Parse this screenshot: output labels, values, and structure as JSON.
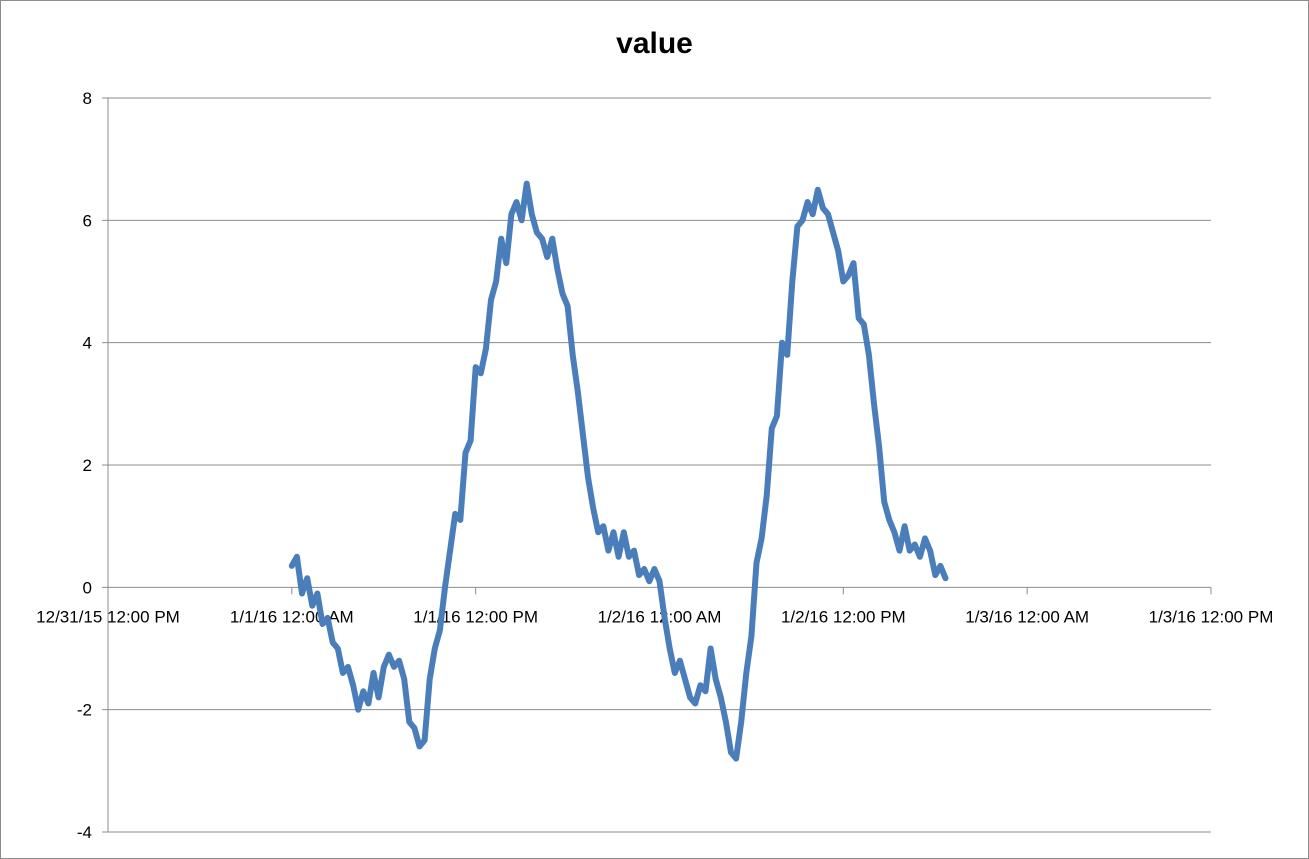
{
  "chart_data": {
    "type": "line",
    "title": "value",
    "xlabel": "",
    "ylabel": "",
    "x_tick_labels": [
      "12/31/15 12:00 PM",
      "1/1/16 12:00 AM",
      "1/1/16 12:00 PM",
      "1/2/16 12:00 AM",
      "1/2/16 12:00 PM",
      "1/3/16 12:00 AM",
      "1/3/16 12:00 PM"
    ],
    "y_tick_labels": [
      "-4",
      "-2",
      "0",
      "2",
      "4",
      "6",
      "8"
    ],
    "ylim": [
      -4,
      8
    ],
    "xlim": [
      "2015-12-31T12:00",
      "2016-01-03T12:00"
    ],
    "grid": "horizontal",
    "legend": "none",
    "series": [
      {
        "color": "#4a7ebb",
        "points": [
          [
            "2016-01-01T00:00",
            0.35
          ],
          [
            "2016-01-01T00:20",
            0.5
          ],
          [
            "2016-01-01T00:40",
            -0.1
          ],
          [
            "2016-01-01T01:00",
            0.15
          ],
          [
            "2016-01-01T01:20",
            -0.3
          ],
          [
            "2016-01-01T01:40",
            -0.1
          ],
          [
            "2016-01-01T02:00",
            -0.6
          ],
          [
            "2016-01-01T02:20",
            -0.5
          ],
          [
            "2016-01-01T02:40",
            -0.9
          ],
          [
            "2016-01-01T03:00",
            -1.0
          ],
          [
            "2016-01-01T03:20",
            -1.4
          ],
          [
            "2016-01-01T03:40",
            -1.3
          ],
          [
            "2016-01-01T04:00",
            -1.6
          ],
          [
            "2016-01-01T04:20",
            -2.0
          ],
          [
            "2016-01-01T04:40",
            -1.7
          ],
          [
            "2016-01-01T05:00",
            -1.9
          ],
          [
            "2016-01-01T05:20",
            -1.4
          ],
          [
            "2016-01-01T05:40",
            -1.8
          ],
          [
            "2016-01-01T06:00",
            -1.3
          ],
          [
            "2016-01-01T06:20",
            -1.1
          ],
          [
            "2016-01-01T06:40",
            -1.3
          ],
          [
            "2016-01-01T07:00",
            -1.2
          ],
          [
            "2016-01-01T07:20",
            -1.5
          ],
          [
            "2016-01-01T07:40",
            -2.2
          ],
          [
            "2016-01-01T08:00",
            -2.3
          ],
          [
            "2016-01-01T08:20",
            -2.6
          ],
          [
            "2016-01-01T08:40",
            -2.5
          ],
          [
            "2016-01-01T09:00",
            -1.5
          ],
          [
            "2016-01-01T09:20",
            -1.0
          ],
          [
            "2016-01-01T09:40",
            -0.7
          ],
          [
            "2016-01-01T10:00",
            0.0
          ],
          [
            "2016-01-01T10:20",
            0.6
          ],
          [
            "2016-01-01T10:40",
            1.2
          ],
          [
            "2016-01-01T11:00",
            1.1
          ],
          [
            "2016-01-01T11:20",
            2.2
          ],
          [
            "2016-01-01T11:40",
            2.4
          ],
          [
            "2016-01-01T12:00",
            3.6
          ],
          [
            "2016-01-01T12:20",
            3.5
          ],
          [
            "2016-01-01T12:40",
            3.9
          ],
          [
            "2016-01-01T13:00",
            4.7
          ],
          [
            "2016-01-01T13:20",
            5.0
          ],
          [
            "2016-01-01T13:40",
            5.7
          ],
          [
            "2016-01-01T14:00",
            5.3
          ],
          [
            "2016-01-01T14:20",
            6.1
          ],
          [
            "2016-01-01T14:40",
            6.3
          ],
          [
            "2016-01-01T15:00",
            6.0
          ],
          [
            "2016-01-01T15:20",
            6.6
          ],
          [
            "2016-01-01T15:40",
            6.1
          ],
          [
            "2016-01-01T16:00",
            5.8
          ],
          [
            "2016-01-01T16:20",
            5.7
          ],
          [
            "2016-01-01T16:40",
            5.4
          ],
          [
            "2016-01-01T17:00",
            5.7
          ],
          [
            "2016-01-01T17:20",
            5.2
          ],
          [
            "2016-01-01T17:40",
            4.8
          ],
          [
            "2016-01-01T18:00",
            4.6
          ],
          [
            "2016-01-01T18:20",
            3.8
          ],
          [
            "2016-01-01T18:40",
            3.2
          ],
          [
            "2016-01-01T19:00",
            2.5
          ],
          [
            "2016-01-01T19:20",
            1.8
          ],
          [
            "2016-01-01T19:40",
            1.3
          ],
          [
            "2016-01-01T20:00",
            0.9
          ],
          [
            "2016-01-01T20:20",
            1.0
          ],
          [
            "2016-01-01T20:40",
            0.6
          ],
          [
            "2016-01-01T21:00",
            0.9
          ],
          [
            "2016-01-01T21:20",
            0.5
          ],
          [
            "2016-01-01T21:40",
            0.9
          ],
          [
            "2016-01-01T22:00",
            0.5
          ],
          [
            "2016-01-01T22:20",
            0.6
          ],
          [
            "2016-01-01T22:40",
            0.2
          ],
          [
            "2016-01-01T23:00",
            0.3
          ],
          [
            "2016-01-01T23:20",
            0.1
          ],
          [
            "2016-01-01T23:40",
            0.3
          ],
          [
            "2016-01-02T00:00",
            0.1
          ],
          [
            "2016-01-02T00:20",
            -0.5
          ],
          [
            "2016-01-02T00:40",
            -1.0
          ],
          [
            "2016-01-02T01:00",
            -1.4
          ],
          [
            "2016-01-02T01:20",
            -1.2
          ],
          [
            "2016-01-02T01:40",
            -1.5
          ],
          [
            "2016-01-02T02:00",
            -1.8
          ],
          [
            "2016-01-02T02:20",
            -1.9
          ],
          [
            "2016-01-02T02:40",
            -1.6
          ],
          [
            "2016-01-02T03:00",
            -1.7
          ],
          [
            "2016-01-02T03:20",
            -1.0
          ],
          [
            "2016-01-02T03:40",
            -1.5
          ],
          [
            "2016-01-02T04:00",
            -1.8
          ],
          [
            "2016-01-02T04:20",
            -2.2
          ],
          [
            "2016-01-02T04:40",
            -2.7
          ],
          [
            "2016-01-02T05:00",
            -2.8
          ],
          [
            "2016-01-02T05:20",
            -2.2
          ],
          [
            "2016-01-02T05:40",
            -1.4
          ],
          [
            "2016-01-02T06:00",
            -0.8
          ],
          [
            "2016-01-02T06:20",
            0.4
          ],
          [
            "2016-01-02T06:40",
            0.8
          ],
          [
            "2016-01-02T07:00",
            1.5
          ],
          [
            "2016-01-02T07:20",
            2.6
          ],
          [
            "2016-01-02T07:40",
            2.8
          ],
          [
            "2016-01-02T08:00",
            4.0
          ],
          [
            "2016-01-02T08:20",
            3.8
          ],
          [
            "2016-01-02T08:40",
            5.0
          ],
          [
            "2016-01-02T09:00",
            5.9
          ],
          [
            "2016-01-02T09:20",
            6.0
          ],
          [
            "2016-01-02T09:40",
            6.3
          ],
          [
            "2016-01-02T10:00",
            6.1
          ],
          [
            "2016-01-02T10:20",
            6.5
          ],
          [
            "2016-01-02T10:40",
            6.2
          ],
          [
            "2016-01-02T11:00",
            6.1
          ],
          [
            "2016-01-02T11:20",
            5.8
          ],
          [
            "2016-01-02T11:40",
            5.5
          ],
          [
            "2016-01-02T12:00",
            5.0
          ],
          [
            "2016-01-02T12:20",
            5.1
          ],
          [
            "2016-01-02T12:40",
            5.3
          ],
          [
            "2016-01-02T13:00",
            4.4
          ],
          [
            "2016-01-02T13:20",
            4.3
          ],
          [
            "2016-01-02T13:40",
            3.8
          ],
          [
            "2016-01-02T14:00",
            3.0
          ],
          [
            "2016-01-02T14:20",
            2.3
          ],
          [
            "2016-01-02T14:40",
            1.4
          ],
          [
            "2016-01-02T15:00",
            1.1
          ],
          [
            "2016-01-02T15:20",
            0.9
          ],
          [
            "2016-01-02T15:40",
            0.6
          ],
          [
            "2016-01-02T16:00",
            1.0
          ],
          [
            "2016-01-02T16:20",
            0.6
          ],
          [
            "2016-01-02T16:40",
            0.7
          ],
          [
            "2016-01-02T17:00",
            0.5
          ],
          [
            "2016-01-02T17:20",
            0.8
          ],
          [
            "2016-01-02T17:40",
            0.6
          ],
          [
            "2016-01-02T18:00",
            0.2
          ],
          [
            "2016-01-02T18:20",
            0.35
          ],
          [
            "2016-01-02T18:40",
            0.15
          ]
        ]
      }
    ]
  }
}
